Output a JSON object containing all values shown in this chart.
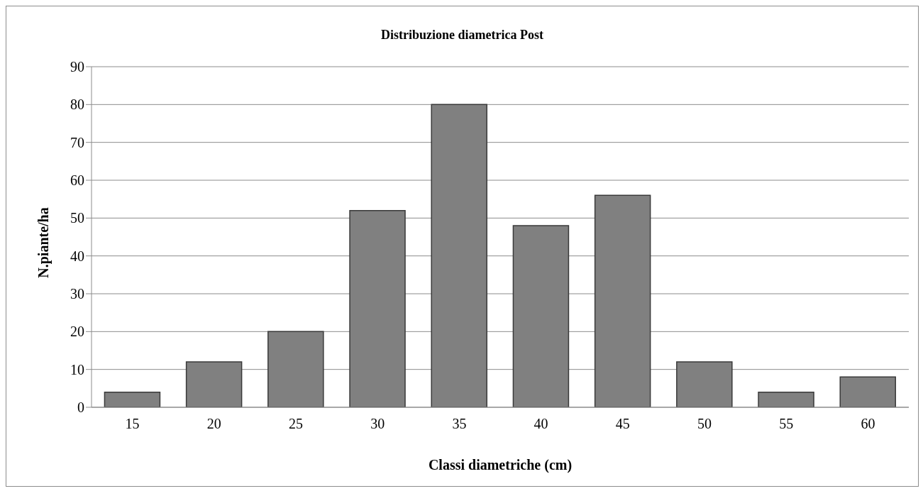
{
  "chart_data": {
    "type": "bar",
    "title": "Distribuzione diametrica  Post",
    "xlabel": "Classi diametriche (cm)",
    "ylabel": "N.piante/ha",
    "categories": [
      "15",
      "20",
      "25",
      "30",
      "35",
      "40",
      "45",
      "50",
      "55",
      "60"
    ],
    "values": [
      4,
      12,
      20,
      52,
      80,
      48,
      56,
      12,
      4,
      8
    ],
    "color": "#808080",
    "ylim": [
      0,
      90
    ],
    "yticks": [
      0,
      10,
      20,
      30,
      40,
      50,
      60,
      70,
      80,
      90
    ],
    "grid": "y",
    "legend": false
  }
}
